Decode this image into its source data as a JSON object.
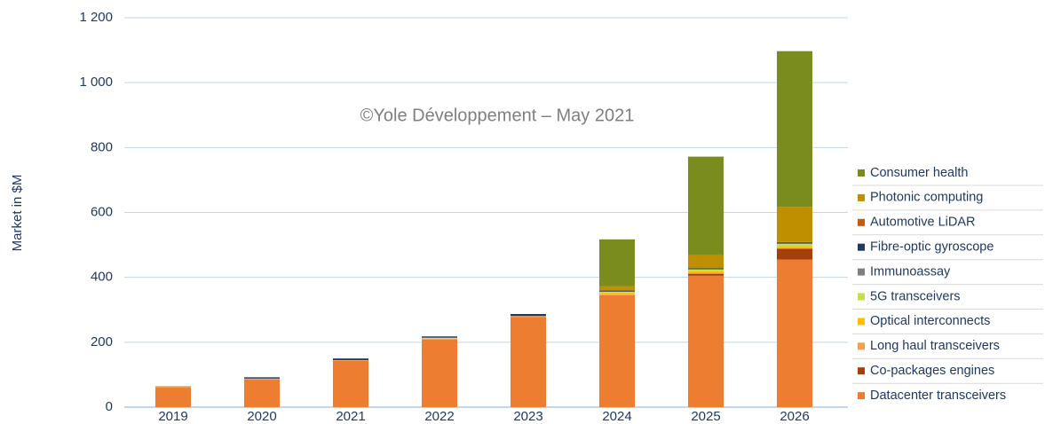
{
  "chart_data": {
    "type": "stacked_bar",
    "annotation": "©Yole Développement – May 2021",
    "y_label": "Market in $M",
    "categories": [
      "2019",
      "2020",
      "2021",
      "2022",
      "2023",
      "2024",
      "2025",
      "2026"
    ],
    "series": [
      {
        "name": "Datacenter transceivers",
        "color": "#ED7D31",
        "values": [
          60,
          85,
          143,
          208,
          278,
          345,
          405,
          455
        ]
      },
      {
        "name": "Co-packages engines",
        "color": "#A5400C",
        "values": [
          0,
          0,
          0,
          0,
          0,
          0,
          6,
          33
        ]
      },
      {
        "name": "Long haul transceivers",
        "color": "#F4A04B",
        "values": [
          5,
          3,
          2,
          3,
          3,
          3,
          3,
          3
        ]
      },
      {
        "name": "Optical interconnects",
        "color": "#FFC000",
        "values": [
          0,
          0,
          0,
          0,
          0,
          5,
          6,
          5
        ]
      },
      {
        "name": "5G transceivers",
        "color": "#C5DE4A",
        "values": [
          0,
          0,
          0,
          3,
          0,
          3,
          5,
          8
        ]
      },
      {
        "name": "Immunoassay",
        "color": "#808080",
        "values": [
          0,
          0,
          0,
          0,
          0,
          0,
          0,
          0
        ]
      },
      {
        "name": "Fibre-optic gyroscope",
        "color": "#1F3864",
        "values": [
          0,
          4,
          5,
          4,
          6,
          3,
          3,
          3
        ]
      },
      {
        "name": "Automotive LiDAR",
        "color": "#C55A11",
        "values": [
          0,
          0,
          0,
          0,
          0,
          2,
          0,
          2
        ]
      },
      {
        "name": "Photonic computing",
        "color": "#BF8F00",
        "values": [
          0,
          0,
          0,
          0,
          0,
          12,
          40,
          108
        ]
      },
      {
        "name": "Consumer health",
        "color": "#7A8C1E",
        "values": [
          0,
          0,
          0,
          0,
          0,
          144,
          304,
          480
        ]
      }
    ],
    "ylim": [
      0,
      1200
    ],
    "yticks": [
      0,
      200,
      400,
      600,
      800,
      {
        "value": 1000,
        "label": "1 000"
      },
      {
        "value": 1200,
        "label": "1 200"
      }
    ],
    "grid": true
  }
}
